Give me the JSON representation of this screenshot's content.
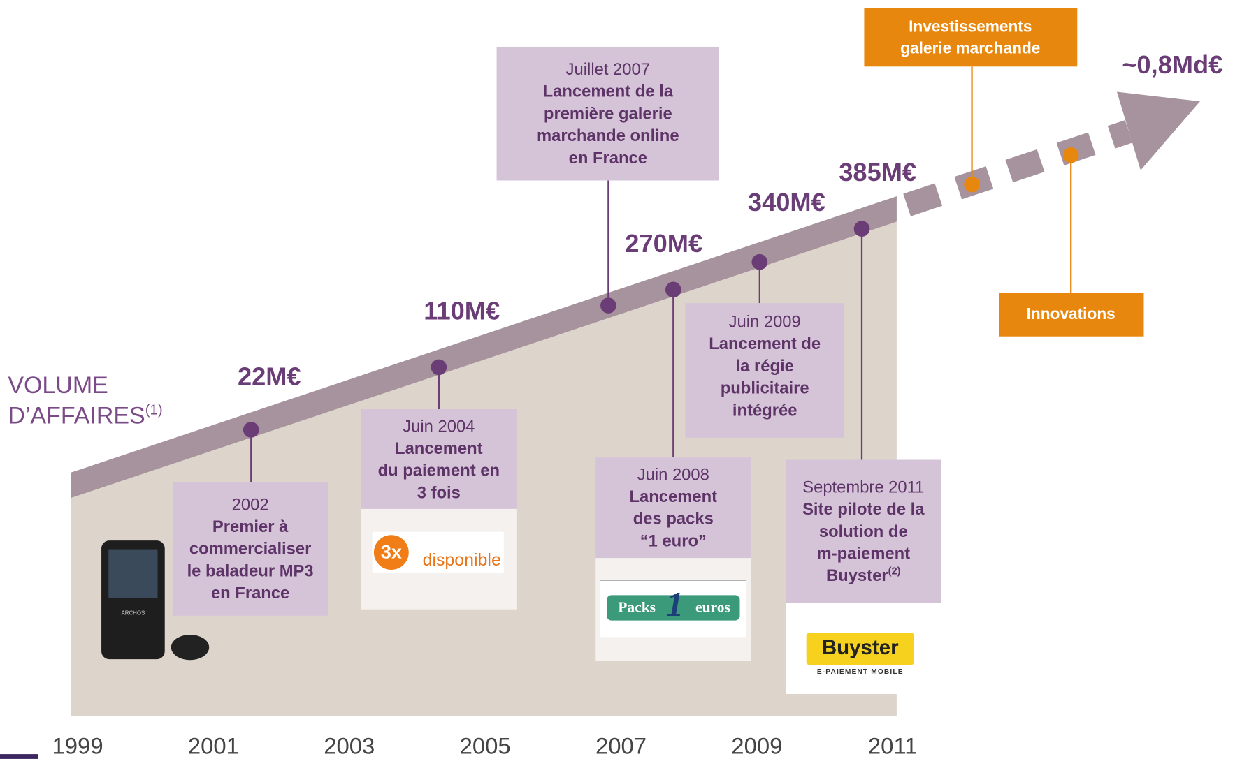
{
  "volume_label": {
    "lines": [
      "VOLUME",
      "D’AFFAIRES"
    ],
    "note": "(1)"
  },
  "years": [
    "1999",
    "2001",
    "2003",
    "2005",
    "2007",
    "2009",
    "2011"
  ],
  "amounts": [
    "22M€",
    "110M€",
    "270M€",
    "340M€",
    "385M€",
    "~0,8Md€"
  ],
  "events": [
    {
      "date": "2002",
      "lines": [
        "Premier à",
        "commercialiser",
        "le baladeur MP3",
        "en France"
      ]
    },
    {
      "date": "Juin 2004",
      "lines": [
        "Lancement",
        "du paiement en",
        "3 fois"
      ]
    },
    {
      "date": "Juillet 2007",
      "lines": [
        "Lancement de la",
        "première galerie",
        "marchande online",
        "en France"
      ]
    },
    {
      "date": "Juin 2008",
      "lines": [
        "Lancement",
        "des packs",
        "“1 euro”"
      ]
    },
    {
      "date": "Juin 2009",
      "lines": [
        "Lancement de",
        "la régie",
        "publicitaire",
        "intégrée"
      ]
    },
    {
      "date": "Septembre 2011",
      "lines": [
        "Site pilote de la",
        "solution de",
        "m-paiement",
        "Buyster"
      ],
      "note": "(2)"
    }
  ],
  "future": {
    "investments": [
      "Investissements",
      "galerie marchande"
    ],
    "innovations": "Innovations"
  },
  "logos": {
    "player": "ARCHOS",
    "three_x": [
      "3x",
      "disponible"
    ],
    "packs": [
      "Packs",
      "1",
      "euros"
    ],
    "buyster": [
      "Buyster",
      "E-PAIEMENT MOBILE"
    ]
  }
}
